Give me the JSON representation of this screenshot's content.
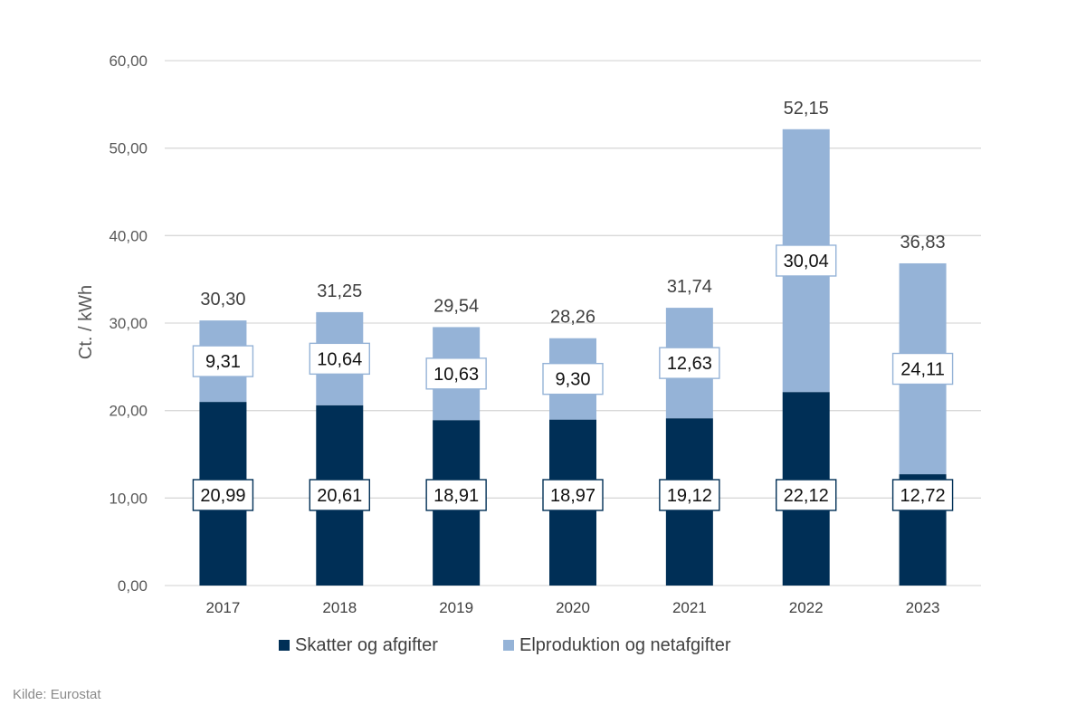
{
  "chart_data": {
    "type": "bar",
    "stacked": true,
    "categories": [
      "2017",
      "2018",
      "2019",
      "2020",
      "2021",
      "2022",
      "2023"
    ],
    "series": [
      {
        "name": "Skatter og afgifter",
        "values": [
          20.99,
          20.61,
          18.91,
          18.97,
          19.12,
          22.12,
          12.72
        ],
        "color": "#002f56",
        "labels": [
          "20,99",
          "20,61",
          "18,91",
          "18,97",
          "19,12",
          "22,12",
          "12,72"
        ]
      },
      {
        "name": "Elproduktion og netafgifter",
        "values": [
          9.31,
          10.64,
          10.63,
          9.3,
          12.63,
          30.04,
          24.11
        ],
        "color": "#95b3d7",
        "labels": [
          "9,31",
          "10,64",
          "10,63",
          "9,30",
          "12,63",
          "30,04",
          "24,11"
        ]
      }
    ],
    "totals": [
      "30,30",
      "31,25",
      "29,54",
      "28,26",
      "31,74",
      "52,15",
      "36,83"
    ],
    "ylabel": "Ct. / kWh",
    "xlabel": "",
    "ylim": [
      0,
      60
    ],
    "yticks": [
      "0,00",
      "10,00",
      "20,00",
      "30,00",
      "40,00",
      "50,00",
      "60,00"
    ],
    "grid": true,
    "legend_position": "bottom"
  },
  "source": "Kilde: Eurostat"
}
